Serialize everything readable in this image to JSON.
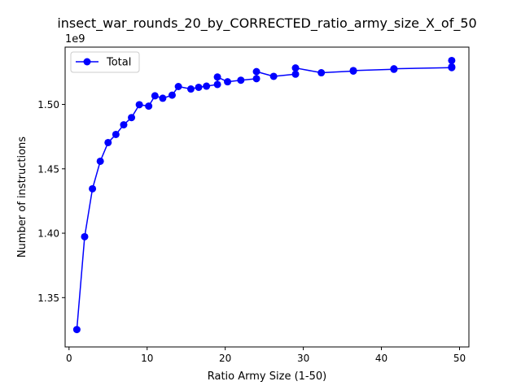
{
  "chart_data": {
    "type": "line",
    "title": "insect_war_rounds_20_by_CORRECTED_ratio_army_size_X_of_50",
    "xlabel": "Ratio Army Size (1-50)",
    "ylabel": "Number of instructions",
    "y_multiplier_label": "1e9",
    "xlim": [
      -0.5,
      51.2
    ],
    "ylim": [
      1.3117,
      1.5445
    ],
    "x_ticks": [
      0,
      10,
      20,
      30,
      40,
      50
    ],
    "x_tick_labels": [
      "0",
      "10",
      "20",
      "30",
      "40",
      "50"
    ],
    "y_ticks": [
      1.35,
      1.4,
      1.45,
      1.5
    ],
    "y_tick_labels": [
      "1.35",
      "1.40",
      "1.45",
      "1.50"
    ],
    "grid": false,
    "legend_position": "top-left",
    "color": "#0000ff",
    "series": [
      {
        "name": "Total",
        "x": [
          1,
          2,
          3,
          4,
          5,
          6,
          7,
          8,
          9,
          10.2,
          11,
          12,
          13.2,
          14,
          15.6,
          16.6,
          17.6,
          19,
          19,
          20.3,
          22,
          24,
          24,
          26.2,
          29,
          29,
          32.3,
          36.4,
          36.4,
          41.6,
          41.6,
          49,
          49,
          49
        ],
        "y": [
          1.3252,
          1.3973,
          1.4345,
          1.4559,
          1.4704,
          1.4767,
          1.4842,
          1.4898,
          1.4998,
          1.4987,
          1.5067,
          1.5048,
          1.5072,
          1.5139,
          1.512,
          1.5133,
          1.5142,
          1.5155,
          1.5213,
          1.5176,
          1.5188,
          1.52,
          1.5255,
          1.5218,
          1.5235,
          1.5283,
          1.5246,
          1.5259,
          1.5263,
          1.5273,
          1.5277,
          1.5286,
          1.5292,
          1.5341
        ]
      }
    ]
  }
}
